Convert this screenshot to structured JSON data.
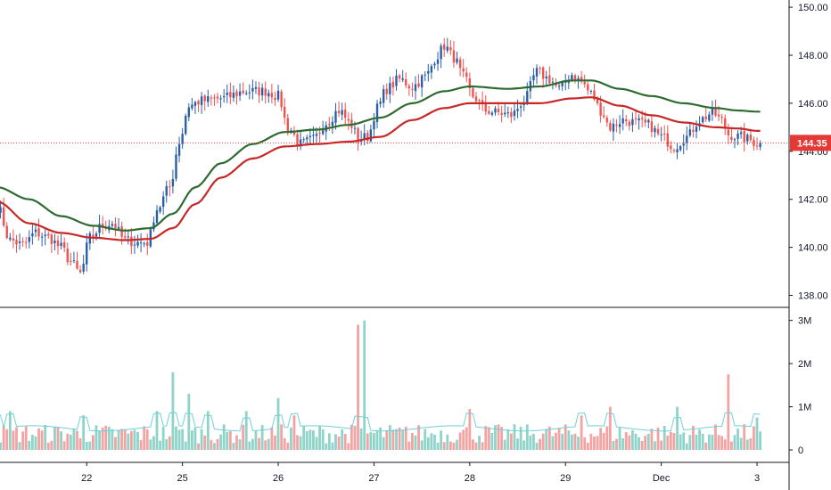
{
  "colors": {
    "up": "#2a5fa8",
    "down": "#ef5350",
    "ma_fast": "#c62828",
    "ma_slow": "#2e6b30",
    "vol_up": "#8fd3c9",
    "vol_down": "#f4a3a3",
    "vol_ma": "#6fd0d8",
    "last_price": "#e53935",
    "axis": "#131722",
    "grid_sep": "#131722"
  },
  "chart_data": [
    {
      "type": "candlestick",
      "name": "price",
      "ylim": [
        137.5,
        150.3
      ],
      "yticks": [
        {
          "value": 150,
          "label": "150.00"
        },
        {
          "value": 148,
          "label": "148.00"
        },
        {
          "value": 146,
          "label": "146.00"
        },
        {
          "value": 144,
          "label": "144.00"
        },
        {
          "value": 142,
          "label": "142.00"
        },
        {
          "value": 140,
          "label": "140.00"
        },
        {
          "value": 138,
          "label": "138.00"
        }
      ],
      "last_price": {
        "value": 144.35,
        "label": "144.35"
      },
      "x_ticks": [
        {
          "index": 28,
          "label": "22"
        },
        {
          "index": 58,
          "label": "25"
        },
        {
          "index": 88,
          "label": "26"
        },
        {
          "index": 118,
          "label": "27"
        },
        {
          "index": 148,
          "label": "28"
        },
        {
          "index": 178,
          "label": "29"
        },
        {
          "index": 208,
          "label": "Dec"
        },
        {
          "index": 238,
          "label": "3"
        }
      ],
      "anchors_close": [
        [
          0,
          141.7
        ],
        [
          4,
          140.3
        ],
        [
          8,
          140.1
        ],
        [
          12,
          140.6
        ],
        [
          16,
          140.4
        ],
        [
          20,
          140.0
        ],
        [
          23,
          139.4
        ],
        [
          26,
          138.9
        ],
        [
          29,
          140.4
        ],
        [
          33,
          140.9
        ],
        [
          36,
          141.0
        ],
        [
          40,
          140.3
        ],
        [
          44,
          140.2
        ],
        [
          47,
          140.2
        ],
        [
          50,
          141.6
        ],
        [
          54,
          142.5
        ],
        [
          57,
          144.4
        ],
        [
          60,
          145.9
        ],
        [
          64,
          146.1
        ],
        [
          70,
          146.2
        ],
        [
          78,
          146.5
        ],
        [
          84,
          146.5
        ],
        [
          88,
          146.3
        ],
        [
          91,
          145.0
        ],
        [
          95,
          144.3
        ],
        [
          99,
          144.5
        ],
        [
          103,
          145.2
        ],
        [
          107,
          145.7
        ],
        [
          111,
          145.1
        ],
        [
          113,
          144.5
        ],
        [
          116,
          144.6
        ],
        [
          119,
          145.8
        ],
        [
          122,
          146.6
        ],
        [
          126,
          147.0
        ],
        [
          130,
          146.7
        ],
        [
          134,
          147.1
        ],
        [
          138,
          148.0
        ],
        [
          140,
          148.4
        ],
        [
          143,
          147.9
        ],
        [
          146,
          147.1
        ],
        [
          149,
          146.3
        ],
        [
          153,
          145.7
        ],
        [
          157,
          145.6
        ],
        [
          161,
          145.5
        ],
        [
          165,
          146.1
        ],
        [
          169,
          147.3
        ],
        [
          173,
          147.0
        ],
        [
          176,
          146.6
        ],
        [
          180,
          147.2
        ],
        [
          183,
          146.9
        ],
        [
          186,
          146.4
        ],
        [
          189,
          145.7
        ],
        [
          192,
          145.0
        ],
        [
          196,
          145.3
        ],
        [
          200,
          145.2
        ],
        [
          204,
          145.1
        ],
        [
          208,
          144.6
        ],
        [
          212,
          144.2
        ],
        [
          216,
          144.6
        ],
        [
          220,
          145.3
        ],
        [
          224,
          145.6
        ],
        [
          227,
          145.3
        ],
        [
          229,
          144.7
        ],
        [
          232,
          144.6
        ],
        [
          235,
          144.5
        ],
        [
          238,
          144.35
        ]
      ],
      "anchors_ma_fast": [
        [
          0,
          141.9
        ],
        [
          10,
          141.0
        ],
        [
          20,
          140.6
        ],
        [
          30,
          140.4
        ],
        [
          40,
          140.3
        ],
        [
          48,
          140.35
        ],
        [
          55,
          140.8
        ],
        [
          62,
          141.8
        ],
        [
          70,
          142.9
        ],
        [
          80,
          143.7
        ],
        [
          90,
          144.2
        ],
        [
          100,
          144.3
        ],
        [
          110,
          144.4
        ],
        [
          120,
          144.6
        ],
        [
          130,
          145.3
        ],
        [
          140,
          145.8
        ],
        [
          148,
          146.0
        ],
        [
          160,
          146.0
        ],
        [
          170,
          146.0
        ],
        [
          180,
          146.2
        ],
        [
          186,
          146.25
        ],
        [
          195,
          145.9
        ],
        [
          205,
          145.5
        ],
        [
          215,
          145.2
        ],
        [
          225,
          145.0
        ],
        [
          232,
          144.95
        ],
        [
          238,
          144.85
        ]
      ],
      "anchors_ma_slow": [
        [
          0,
          142.5
        ],
        [
          10,
          142.0
        ],
        [
          20,
          141.3
        ],
        [
          30,
          140.9
        ],
        [
          40,
          140.7
        ],
        [
          48,
          140.8
        ],
        [
          55,
          141.4
        ],
        [
          62,
          142.5
        ],
        [
          70,
          143.5
        ],
        [
          80,
          144.3
        ],
        [
          90,
          144.8
        ],
        [
          100,
          144.9
        ],
        [
          110,
          145.1
        ],
        [
          120,
          145.4
        ],
        [
          130,
          146.0
        ],
        [
          140,
          146.5
        ],
        [
          148,
          146.7
        ],
        [
          160,
          146.6
        ],
        [
          170,
          146.7
        ],
        [
          180,
          146.95
        ],
        [
          186,
          146.95
        ],
        [
          195,
          146.6
        ],
        [
          205,
          146.3
        ],
        [
          215,
          146.0
        ],
        [
          225,
          145.8
        ],
        [
          232,
          145.7
        ],
        [
          238,
          145.65
        ]
      ]
    },
    {
      "type": "bar",
      "name": "volume",
      "ylim": [
        0,
        3.2
      ],
      "yticks": [
        {
          "value": 3,
          "label": "3M"
        },
        {
          "value": 2,
          "label": "2M"
        },
        {
          "value": 1,
          "label": "1M"
        },
        {
          "value": 0,
          "label": "0"
        }
      ],
      "spikes_millions": [
        [
          0,
          1.0
        ],
        [
          4,
          0.9
        ],
        [
          27,
          0.8
        ],
        [
          50,
          0.9
        ],
        [
          55,
          1.8
        ],
        [
          60,
          1.3
        ],
        [
          66,
          0.9
        ],
        [
          78,
          0.9
        ],
        [
          88,
          1.2
        ],
        [
          93,
          0.8
        ],
        [
          113,
          2.9
        ],
        [
          115,
          3.0
        ],
        [
          148,
          0.95
        ],
        [
          183,
          0.8
        ],
        [
          192,
          1.0
        ],
        [
          213,
          1.0
        ],
        [
          229,
          1.75
        ],
        [
          238,
          0.75
        ]
      ],
      "ma_level_millions": 0.5
    }
  ]
}
